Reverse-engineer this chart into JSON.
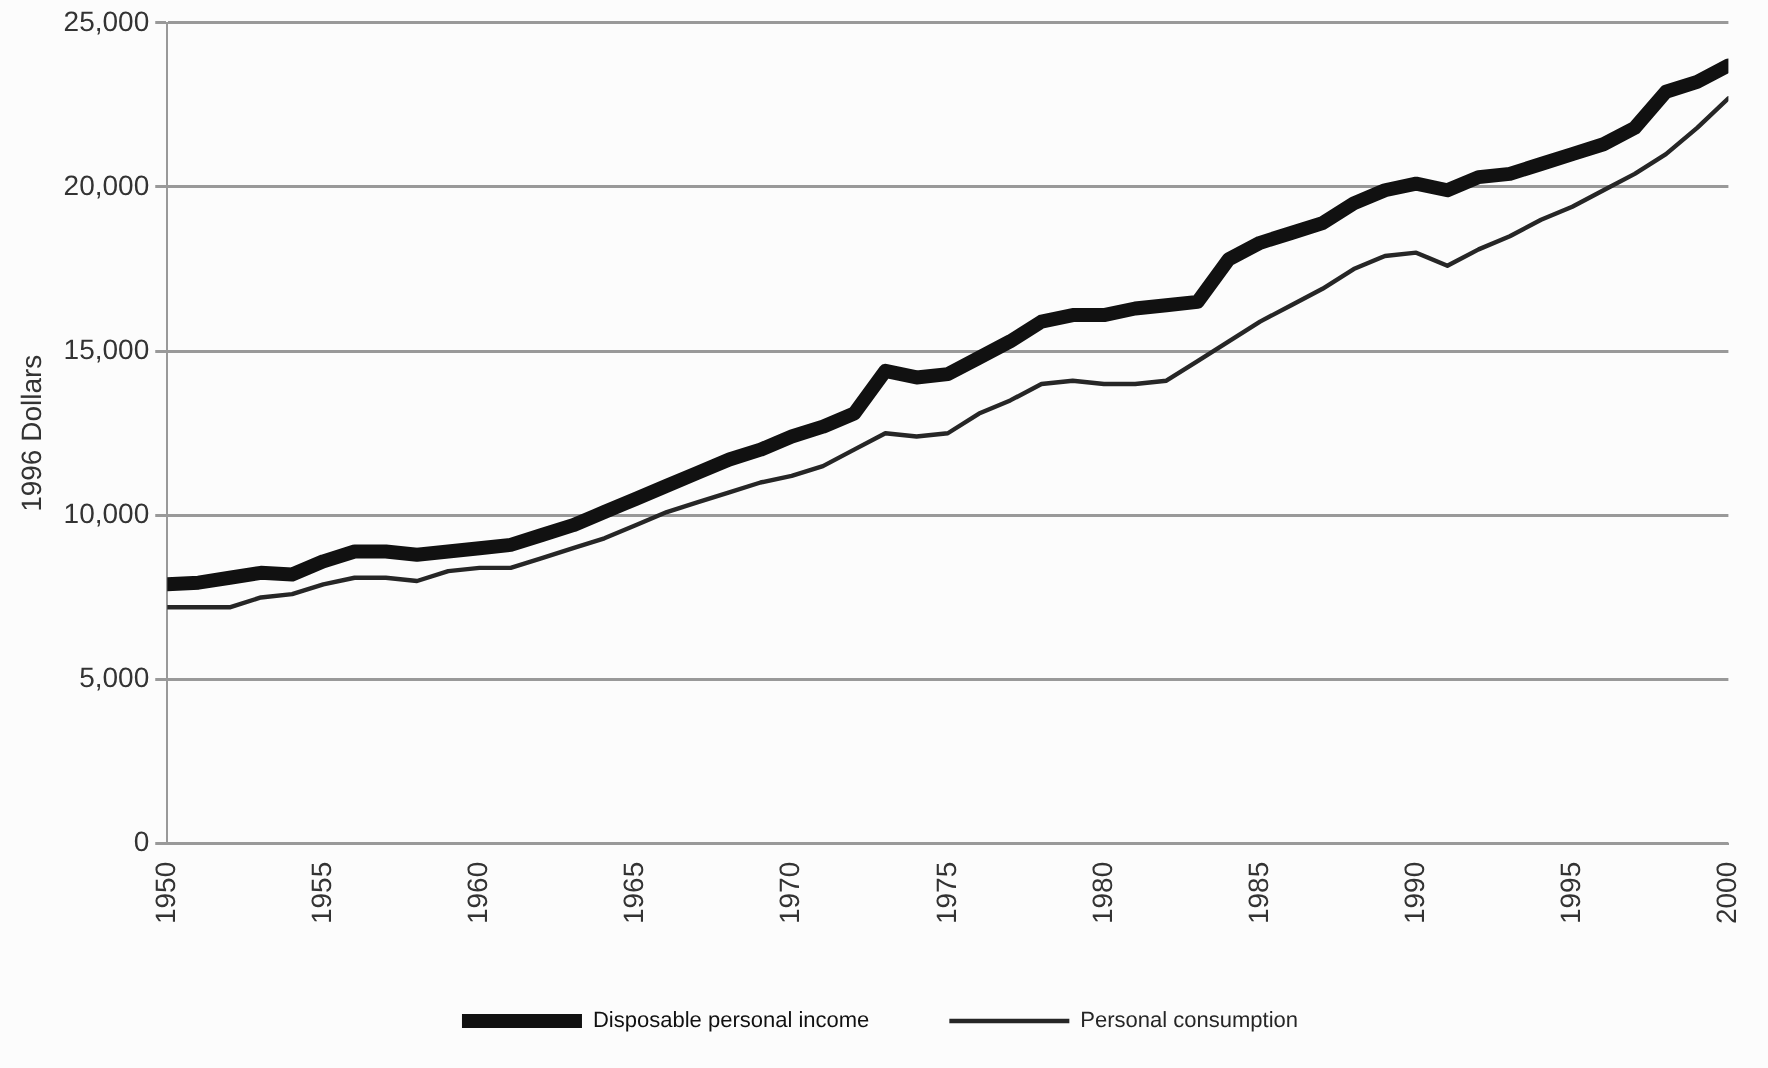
{
  "chart_data": {
    "type": "line",
    "ylabel": "1996 Dollars",
    "x": [
      1950,
      1951,
      1952,
      1953,
      1954,
      1955,
      1956,
      1957,
      1958,
      1959,
      1960,
      1961,
      1962,
      1963,
      1964,
      1965,
      1966,
      1967,
      1968,
      1969,
      1970,
      1971,
      1972,
      1973,
      1974,
      1975,
      1976,
      1977,
      1978,
      1979,
      1980,
      1981,
      1982,
      1983,
      1984,
      1985,
      1986,
      1987,
      1988,
      1989,
      1990,
      1991,
      1992,
      1993,
      1994,
      1995,
      1996,
      1997,
      1998,
      1999,
      2000
    ],
    "series": [
      {
        "name": "Disposable personal income",
        "color": "#111111",
        "values": [
          7900,
          7950,
          8100,
          8250,
          8200,
          8600,
          8900,
          8900,
          8800,
          8900,
          9000,
          9100,
          9400,
          9700,
          10100,
          10500,
          10900,
          11300,
          11700,
          12000,
          12400,
          12700,
          13100,
          14400,
          14200,
          14300,
          14800,
          15300,
          15900,
          16100,
          16100,
          16300,
          16400,
          16500,
          17800,
          18300,
          18600,
          18900,
          19500,
          19900,
          20100,
          19900,
          20300,
          20400,
          20700,
          21000,
          21300,
          21800,
          22900,
          23200,
          23700
        ]
      },
      {
        "name": "Personal consumption",
        "color": "#262626",
        "values": [
          7200,
          7200,
          7200,
          7500,
          7600,
          7900,
          8100,
          8100,
          8000,
          8300,
          8400,
          8400,
          8700,
          9000,
          9300,
          9700,
          10100,
          10400,
          10700,
          11000,
          11200,
          11500,
          12000,
          12500,
          12400,
          12500,
          13100,
          13500,
          14000,
          14100,
          14000,
          14000,
          14100,
          14700,
          15300,
          15900,
          16400,
          16900,
          17500,
          17900,
          18000,
          17600,
          18100,
          18500,
          19000,
          19400,
          19900,
          20400,
          21000,
          21800,
          22700
        ]
      }
    ],
    "xlim": [
      1950,
      2000
    ],
    "xticks": [
      1950,
      1955,
      1960,
      1965,
      1970,
      1975,
      1980,
      1985,
      1990,
      1995,
      2000
    ],
    "ylim": [
      0,
      25000
    ],
    "yticks": [
      0,
      {
        "value": 5000,
        "label": "5,000"
      },
      {
        "value": 10000,
        "label": "10,000"
      },
      {
        "value": 15000,
        "label": "15,000"
      },
      {
        "value": 20000,
        "label": "20,000"
      },
      {
        "value": 25000,
        "label": "25,000"
      }
    ],
    "grid": "y",
    "legend": "bottom",
    "marker": "none",
    "line_style": "solid"
  }
}
